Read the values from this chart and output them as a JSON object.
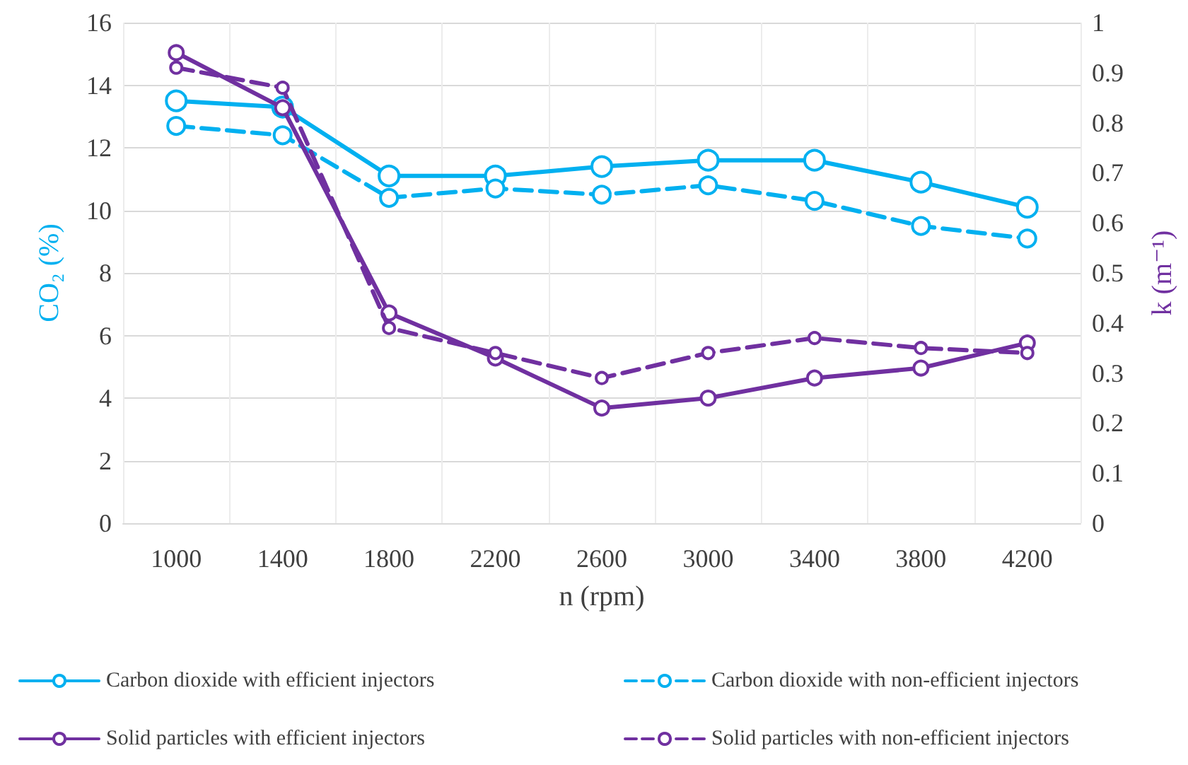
{
  "chart_data": {
    "type": "line",
    "xlabel": "n (rpm)",
    "ylabel": "CO₂ (%)",
    "y2label": "k (m⁻¹)",
    "categories": [
      "1000",
      "1400",
      "1800",
      "2200",
      "2600",
      "3000",
      "3400",
      "3800",
      "4200"
    ],
    "series": [
      {
        "name": "Carbon dioxide with efficient injectors",
        "color": "#00b0f0",
        "line_style": "solid",
        "values": [
          13.5,
          13.3,
          11.1,
          11.1,
          11.4,
          11.6,
          11.6,
          10.9,
          10.1
        ]
      },
      {
        "name": "Carbon dioxide with non-efficient injectors",
        "color": "#00b0f0",
        "line_style": "dashed",
        "values": [
          12.7,
          12.4,
          10.4,
          10.7,
          10.5,
          10.8,
          10.3,
          9.5,
          9.1
        ]
      },
      {
        "name": "Solid particles with efficient injectors",
        "color": "#7030a0",
        "line_style": "solid",
        "axis": "y2",
        "values": [
          0.94,
          0.83,
          0.42,
          0.33,
          0.23,
          0.25,
          0.29,
          0.31,
          0.36
        ]
      },
      {
        "name": "Solid particles with non-efficient injectors",
        "color": "#7030a0",
        "line_style": "dashed",
        "axis": "y2",
        "values": [
          0.91,
          0.87,
          0.39,
          0.34,
          0.29,
          0.34,
          0.37,
          0.35,
          0.34
        ]
      }
    ],
    "ylim": [
      0,
      16
    ],
    "yticks": [
      0,
      2,
      4,
      6,
      8,
      10,
      12,
      14,
      16
    ],
    "y2lim": [
      0,
      1
    ],
    "y2ticks": [
      0,
      0.1,
      0.2,
      0.3,
      0.4,
      0.5,
      0.6,
      0.7,
      0.8,
      0.9,
      1
    ],
    "grid": true,
    "legend": "bottom",
    "marker": "circle"
  }
}
